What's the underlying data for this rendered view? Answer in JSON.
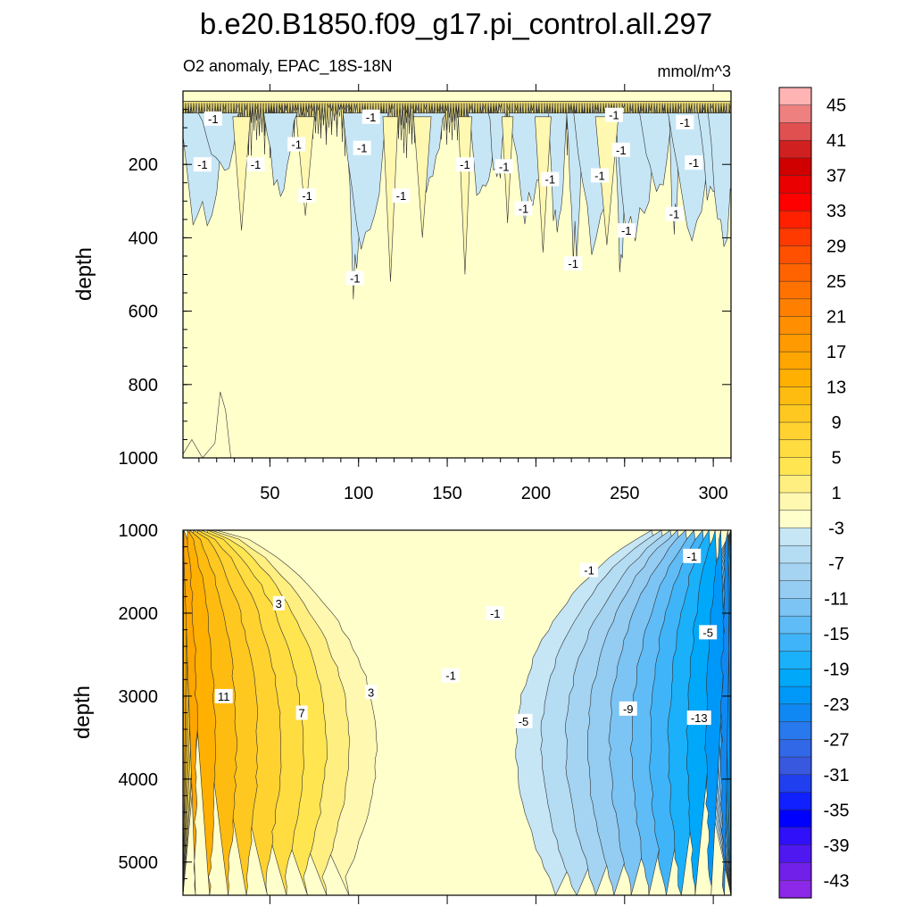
{
  "figure": {
    "title": "b.e20.B1850.f09_g17.pi_control.all.297",
    "subtitle_left": "O2 anomaly, EPAC_18S-18N",
    "subtitle_right": "mmol/m^3"
  },
  "chart_data": [
    {
      "type": "contour",
      "panel": "upper",
      "xlabel": "",
      "ylabel": "depth",
      "xlim": [
        1,
        310
      ],
      "ylim": [
        1000,
        0
      ],
      "x_ticks": [
        50,
        100,
        150,
        200,
        250,
        300
      ],
      "x_tick_labels": [
        "50",
        "100",
        "150",
        "200",
        "250",
        "300"
      ],
      "y_ticks": [
        200,
        400,
        600,
        800,
        1000
      ],
      "y_tick_labels": [
        "200",
        "400",
        "600",
        "800",
        "1000"
      ],
      "contour_labels": [
        {
          "x": 18,
          "y": 75,
          "text": "-1"
        },
        {
          "x": 107,
          "y": 70,
          "text": "-1"
        },
        {
          "x": 65,
          "y": 145,
          "text": "-1"
        },
        {
          "x": 102,
          "y": 155,
          "text": "-1"
        },
        {
          "x": 12,
          "y": 200,
          "text": "-1"
        },
        {
          "x": 42,
          "y": 200,
          "text": "-1"
        },
        {
          "x": 160,
          "y": 200,
          "text": "-1"
        },
        {
          "x": 182,
          "y": 205,
          "text": "-1"
        },
        {
          "x": 208,
          "y": 240,
          "text": "-1"
        },
        {
          "x": 236,
          "y": 230,
          "text": "-1"
        },
        {
          "x": 248,
          "y": 160,
          "text": "-1"
        },
        {
          "x": 244,
          "y": 65,
          "text": "-1"
        },
        {
          "x": 284,
          "y": 85,
          "text": "-1"
        },
        {
          "x": 289,
          "y": 195,
          "text": "-1"
        },
        {
          "x": 71,
          "y": 285,
          "text": "-1"
        },
        {
          "x": 124,
          "y": 285,
          "text": "-1"
        },
        {
          "x": 193,
          "y": 320,
          "text": "-1"
        },
        {
          "x": 278,
          "y": 335,
          "text": "-1"
        },
        {
          "x": 251,
          "y": 380,
          "text": "-1"
        },
        {
          "x": 221,
          "y": 470,
          "text": "-1"
        },
        {
          "x": 98,
          "y": 510,
          "text": "-1"
        }
      ]
    },
    {
      "type": "contour",
      "panel": "lower",
      "xlabel": "",
      "ylabel": "depth",
      "xlim": [
        1,
        310
      ],
      "ylim": [
        5400,
        1000
      ],
      "y_ticks": [
        1000,
        2000,
        3000,
        4000,
        5000
      ],
      "y_tick_labels": [
        "1000",
        "2000",
        "3000",
        "4000",
        "5000"
      ],
      "contour_labels": [
        {
          "x": 55,
          "y": 1880,
          "text": "3"
        },
        {
          "x": 107,
          "y": 2950,
          "text": "3"
        },
        {
          "x": 24,
          "y": 3000,
          "text": "11"
        },
        {
          "x": 68,
          "y": 3200,
          "text": "7"
        },
        {
          "x": 230,
          "y": 1480,
          "text": "-1"
        },
        {
          "x": 288,
          "y": 1310,
          "text": "-1"
        },
        {
          "x": 177,
          "y": 2000,
          "text": "-1"
        },
        {
          "x": 152,
          "y": 2750,
          "text": "-1"
        },
        {
          "x": 297,
          "y": 2230,
          "text": "-5"
        },
        {
          "x": 193,
          "y": 3300,
          "text": "-5"
        },
        {
          "x": 252,
          "y": 3150,
          "text": "-9"
        },
        {
          "x": 292,
          "y": 3260,
          "text": "-13"
        }
      ]
    }
  ],
  "colorbar": {
    "units": "mmol/m^3",
    "colors": [
      "#ffb3b3",
      "#ee8080",
      "#e05050",
      "#d02020",
      "#d00000",
      "#ea0000",
      "#ff0000",
      "#ff2000",
      "#ff3a00",
      "#ff5000",
      "#ff6300",
      "#ff7200",
      "#ff8000",
      "#ff8e00",
      "#ff9a00",
      "#ffa500",
      "#ffb000",
      "#ffbc10",
      "#ffc820",
      "#ffd230",
      "#ffdc40",
      "#ffe650",
      "#ffee80",
      "#fff8b0",
      "#ffffcc",
      "#c6e6f6",
      "#b4dcf3",
      "#a4d4f2",
      "#94ccf2",
      "#7cc4f4",
      "#60bcf6",
      "#40b4f8",
      "#1ab0fa",
      "#00a8fa",
      "#0098f8",
      "#1088f4",
      "#2878ee",
      "#3068e8",
      "#3858e0",
      "#2040f0",
      "#1020ff",
      "#0000ff",
      "#3010f8",
      "#5018f0",
      "#7020e8",
      "#8c28e8"
    ],
    "labels": [
      "45",
      "41",
      "37",
      "33",
      "29",
      "25",
      "21",
      "17",
      "13",
      "9",
      "5",
      "1",
      "-3",
      "-7",
      "-11",
      "-15",
      "-19",
      "-23",
      "-27",
      "-31",
      "-35",
      "-39",
      "-43"
    ]
  }
}
